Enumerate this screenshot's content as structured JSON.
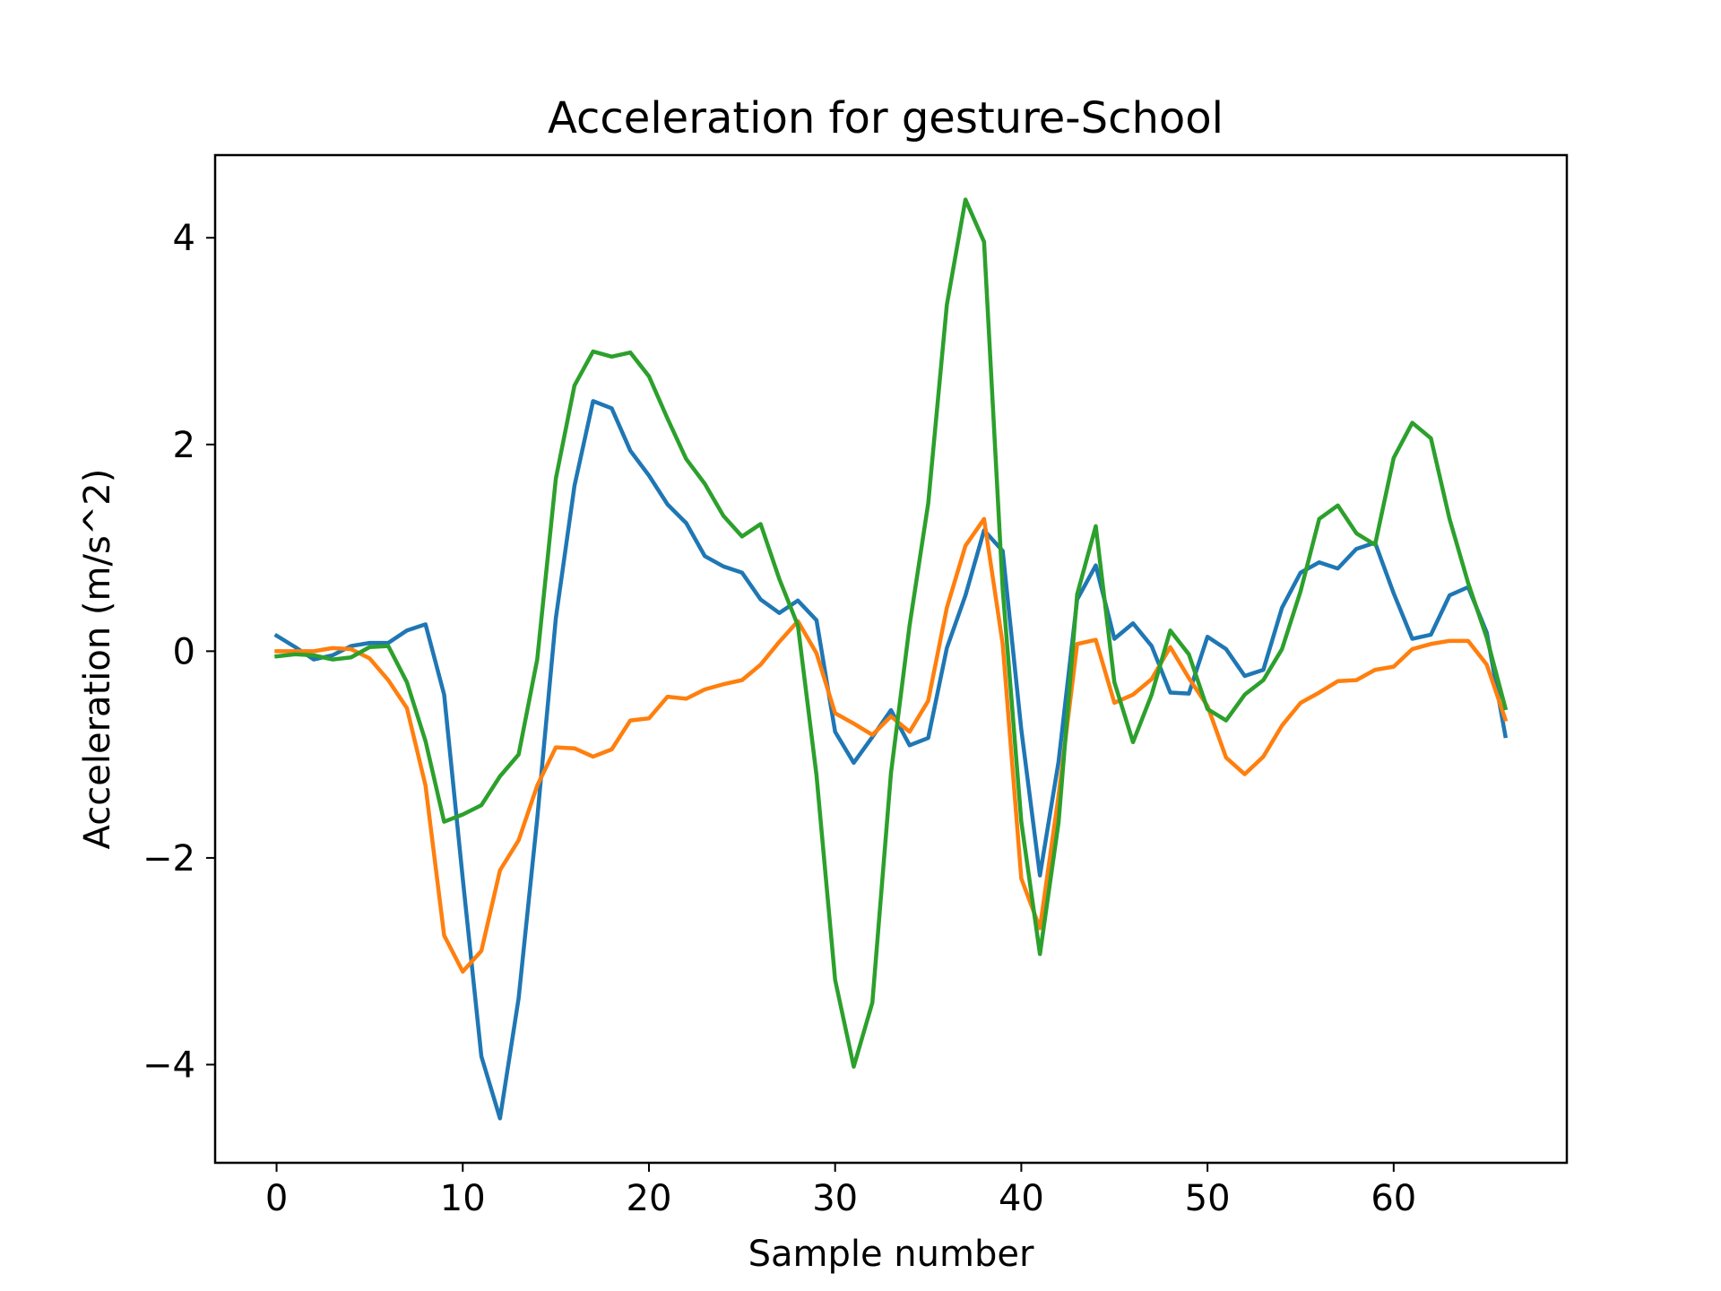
{
  "chart_data": {
    "type": "line",
    "title": "Acceleration for gesture-School",
    "xlabel": "Sample number",
    "ylabel": "Acceleration (m/s^2)",
    "xlim": [
      -3.3,
      69.3
    ],
    "ylim": [
      -4.95,
      4.8
    ],
    "xticks": [
      0,
      10,
      20,
      30,
      40,
      50,
      60
    ],
    "yticks": [
      -4,
      -2,
      0,
      2,
      4
    ],
    "ytick_labels": [
      "−4",
      "−2",
      "0",
      "2",
      "4"
    ],
    "xtick_labels": [
      "0",
      "10",
      "20",
      "30",
      "40",
      "50",
      "60"
    ],
    "grid": false,
    "x": [
      0,
      1,
      2,
      3,
      4,
      5,
      6,
      7,
      8,
      9,
      10,
      11,
      12,
      13,
      14,
      15,
      16,
      17,
      18,
      19,
      20,
      21,
      22,
      23,
      24,
      25,
      26,
      27,
      28,
      29,
      30,
      31,
      32,
      33,
      34,
      35,
      36,
      37,
      38,
      39,
      40,
      41,
      42,
      43,
      44,
      45,
      46,
      47,
      48,
      49,
      50,
      51,
      52,
      53,
      54,
      55,
      56,
      57,
      58,
      59,
      60,
      61,
      62,
      63,
      64,
      65,
      66
    ],
    "series": [
      {
        "color": "#1f77b4",
        "values": [
          0.15,
          0.04,
          -0.08,
          -0.04,
          0.05,
          0.08,
          0.08,
          0.2,
          0.26,
          -0.42,
          -2.2,
          -3.92,
          -4.52,
          -3.36,
          -1.62,
          0.32,
          1.6,
          2.42,
          2.35,
          1.94,
          1.7,
          1.42,
          1.24,
          0.92,
          0.82,
          0.76,
          0.5,
          0.37,
          0.49,
          0.3,
          -0.78,
          -1.08,
          -0.83,
          -0.57,
          -0.91,
          -0.84,
          0.03,
          0.54,
          1.17,
          0.97,
          -0.76,
          -2.17,
          -1.07,
          0.5,
          0.83,
          0.12,
          0.27,
          0.05,
          -0.4,
          -0.41,
          0.14,
          0.02,
          -0.24,
          -0.18,
          0.42,
          0.76,
          0.86,
          0.8,
          0.99,
          1.05,
          0.56,
          0.12,
          0.16,
          0.54,
          0.62,
          0.18,
          -0.82
        ]
      },
      {
        "color": "#ff7f0e",
        "values": [
          0,
          0,
          0,
          0.03,
          0.02,
          -0.07,
          -0.28,
          -0.55,
          -1.3,
          -2.75,
          -3.1,
          -2.9,
          -2.12,
          -1.83,
          -1.3,
          -0.93,
          -0.94,
          -1.02,
          -0.95,
          -0.67,
          -0.65,
          -0.44,
          -0.46,
          -0.37,
          -0.32,
          -0.28,
          -0.13,
          0.09,
          0.29,
          -0.02,
          -0.6,
          -0.7,
          -0.81,
          -0.63,
          -0.78,
          -0.48,
          0.42,
          1.02,
          1.28,
          0.07,
          -2.2,
          -2.68,
          -1.4,
          0.07,
          0.11,
          -0.5,
          -0.42,
          -0.27,
          0.04,
          -0.26,
          -0.53,
          -1.03,
          -1.19,
          -1.02,
          -0.72,
          -0.5,
          -0.4,
          -0.29,
          -0.28,
          -0.18,
          -0.15,
          0.02,
          0.07,
          0.1,
          0.1,
          -0.13,
          -0.66
        ]
      },
      {
        "color": "#2ca02c",
        "values": [
          -0.05,
          -0.03,
          -0.04,
          -0.08,
          -0.06,
          0.04,
          0.05,
          -0.3,
          -0.87,
          -1.65,
          -1.58,
          -1.49,
          -1.21,
          -1,
          -0.08,
          1.67,
          2.57,
          2.9,
          2.85,
          2.89,
          2.66,
          2.25,
          1.86,
          1.62,
          1.31,
          1.11,
          1.23,
          0.7,
          0.25,
          -1.2,
          -3.18,
          -4.02,
          -3.4,
          -1.18,
          0.25,
          1.43,
          3.35,
          4.37,
          3.96,
          0.6,
          -1.65,
          -2.93,
          -1.66,
          0.55,
          1.21,
          -0.3,
          -0.88,
          -0.42,
          0.2,
          -0.03,
          -0.56,
          -0.67,
          -0.42,
          -0.28,
          0.02,
          0.58,
          1.28,
          1.41,
          1.14,
          1.03,
          1.87,
          2.21,
          2.06,
          1.28,
          0.66,
          0.13,
          -0.55
        ]
      }
    ]
  }
}
